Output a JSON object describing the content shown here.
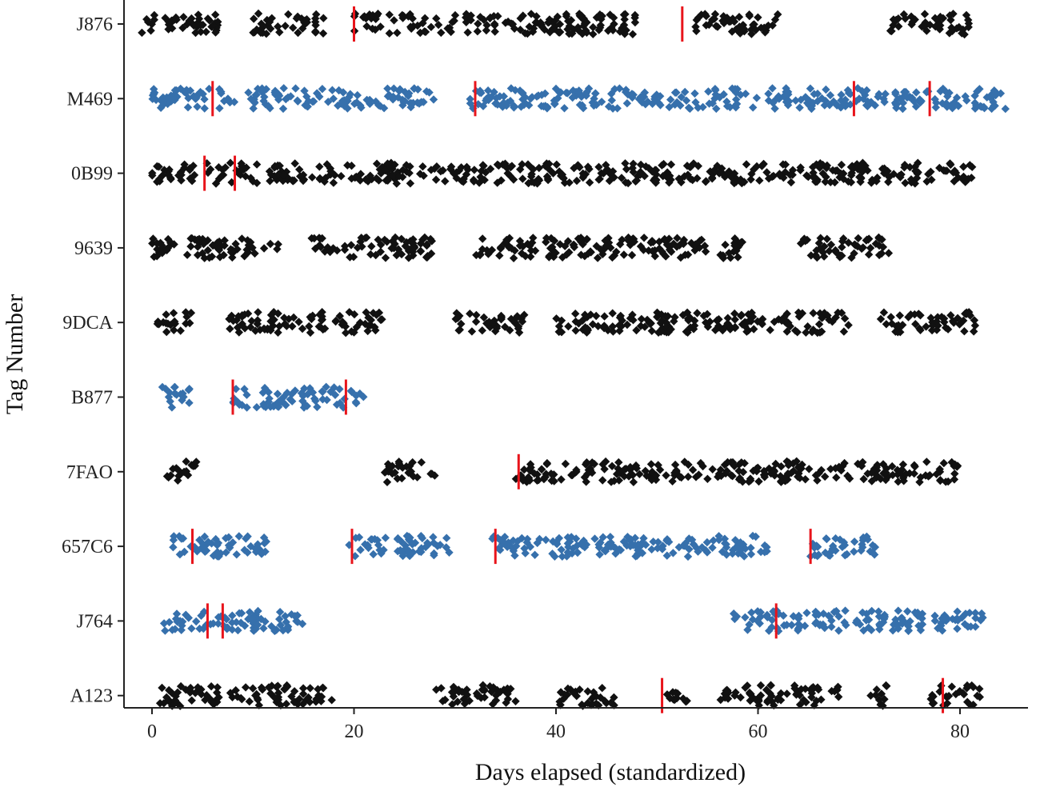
{
  "chart_data": {
    "type": "scatter",
    "title": "",
    "xlabel": "Days elapsed (standardized)",
    "ylabel": "Tag Number",
    "xlim": [
      -3,
      86
    ],
    "x_ticks": [
      0,
      20,
      40,
      60,
      80
    ],
    "x_tick_labels": [
      "0",
      "20",
      "40",
      "60",
      "80"
    ],
    "grid": false,
    "legend": "none",
    "marker": "diamond",
    "change_marker_color": "#e8141b",
    "colors": {
      "black": "#111111",
      "blue": "#3670ac"
    },
    "categories": [
      "J876",
      "M469",
      "0B99",
      "9639",
      "9DCA",
      "B877",
      "7FAO",
      "657C6",
      "J764",
      "A123"
    ],
    "series": [
      {
        "tag": "J876",
        "color_key": "black",
        "segments": [
          [
            -1,
            7
          ],
          [
            10,
            17
          ],
          [
            20,
            48
          ],
          [
            53,
            62
          ],
          [
            73,
            81
          ]
        ],
        "change_points": [
          20,
          52.5
        ]
      },
      {
        "tag": "M469",
        "color_key": "blue",
        "segments": [
          [
            0,
            28
          ],
          [
            31.5,
            84.5
          ]
        ],
        "change_points": [
          6,
          32,
          69.5,
          77
        ]
      },
      {
        "tag": "0B99",
        "color_key": "black",
        "segments": [
          [
            0,
            81.5
          ]
        ],
        "change_points": [
          5.2,
          8.2
        ]
      },
      {
        "tag": "9639",
        "color_key": "black",
        "segments": [
          [
            0,
            12.5
          ],
          [
            15.5,
            28
          ],
          [
            32,
            59
          ],
          [
            64,
            73
          ]
        ],
        "change_points": []
      },
      {
        "tag": "9DCA",
        "color_key": "black",
        "segments": [
          [
            0.5,
            4
          ],
          [
            7.5,
            23
          ],
          [
            30,
            37
          ],
          [
            40,
            69
          ],
          [
            72,
            81.5
          ]
        ],
        "change_points": []
      },
      {
        "tag": "B877",
        "color_key": "blue",
        "segments": [
          [
            1,
            4
          ],
          [
            8,
            21
          ]
        ],
        "change_points": [
          8,
          19.2
        ]
      },
      {
        "tag": "7FAO",
        "color_key": "black",
        "segments": [
          [
            1.5,
            4.5
          ],
          [
            23,
            28
          ],
          [
            36,
            80
          ]
        ],
        "change_points": [
          36.3
        ]
      },
      {
        "tag": "657C6",
        "color_key": "blue",
        "segments": [
          [
            2,
            11.5
          ],
          [
            19.5,
            30
          ],
          [
            33.5,
            61
          ],
          [
            65,
            72
          ]
        ],
        "change_points": [
          4,
          19.8,
          34,
          65.2
        ]
      },
      {
        "tag": "J764",
        "color_key": "blue",
        "segments": [
          [
            0.5,
            15
          ],
          [
            57.5,
            82.5
          ]
        ],
        "change_points": [
          5.5,
          7,
          61.8
        ]
      },
      {
        "tag": "A123",
        "color_key": "black",
        "segments": [
          [
            0.5,
            18
          ],
          [
            28,
            36
          ],
          [
            40,
            46
          ],
          [
            51,
            53
          ],
          [
            56,
            68
          ],
          [
            71,
            73
          ],
          [
            77,
            82
          ]
        ],
        "change_points": [
          50.5,
          78.3
        ]
      }
    ]
  }
}
